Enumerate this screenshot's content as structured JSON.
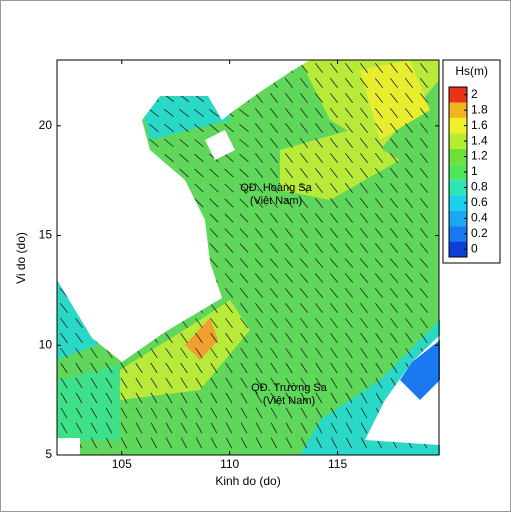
{
  "chart_data": {
    "type": "field-map",
    "xlabel": "Kinh do (do)",
    "ylabel": "Vi do (do)",
    "xlim": [
      102,
      119.7
    ],
    "ylim": [
      5,
      23
    ],
    "xticks": [
      105,
      110,
      115
    ],
    "yticks": [
      5,
      10,
      15,
      20
    ],
    "annotations": [
      "QĐ. Hoàng Sa\n(Việt Nam)",
      "QĐ. Trường Sa\n(Việt Nam)"
    ],
    "colorbar": {
      "title": "Hs(m)",
      "clim": [
        -0.1,
        2.1
      ],
      "ticks": [
        0,
        0.2,
        0.4,
        0.6,
        0.8,
        1,
        1.2,
        1.4,
        1.6,
        1.8,
        2
      ],
      "colors": [
        "#0a3fd8",
        "#1a78f0",
        "#1aa8f0",
        "#1ad2ec",
        "#2ee6b4",
        "#4ee65a",
        "#6ee03a",
        "#b4ec2e",
        "#f0f02a",
        "#f0b41e",
        "#e8321a"
      ]
    }
  }
}
